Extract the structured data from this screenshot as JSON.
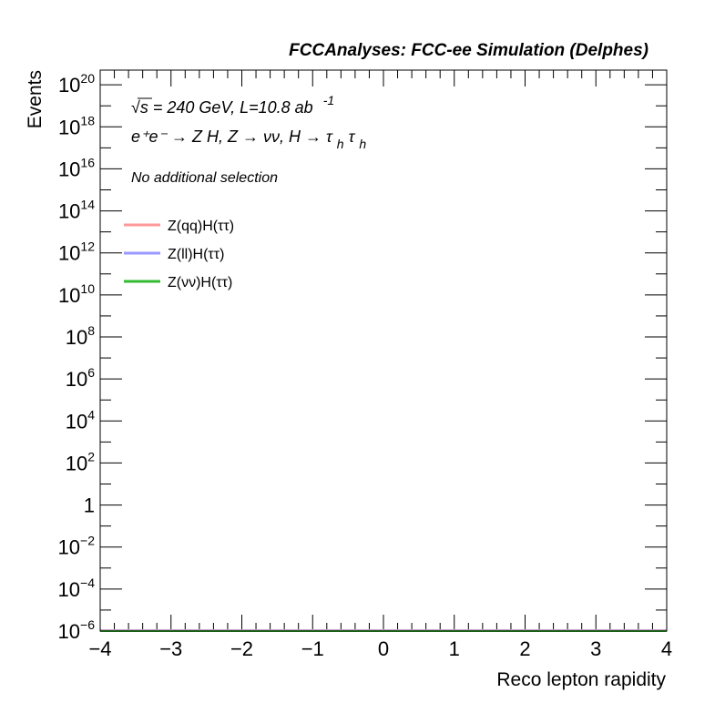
{
  "chart_data": {
    "type": "line",
    "title": "FCCAnalyses: FCC-ee Simulation (Delphes)",
    "xlabel": "Reco lepton rapidity",
    "ylabel": "Events",
    "xlim": [
      -4,
      4
    ],
    "ylim_log10": [
      -6,
      20.7
    ],
    "yscale": "log",
    "x_ticks": [
      "−4",
      "−3",
      "−2",
      "−1",
      "0",
      "1",
      "2",
      "3",
      "4"
    ],
    "y_ticks": [
      {
        "base": "10",
        "exp": "20"
      },
      {
        "base": "10",
        "exp": "18"
      },
      {
        "base": "10",
        "exp": "16"
      },
      {
        "base": "10",
        "exp": "14"
      },
      {
        "base": "10",
        "exp": "12"
      },
      {
        "base": "10",
        "exp": "10"
      },
      {
        "base": "10",
        "exp": "8"
      },
      {
        "base": "10",
        "exp": "6"
      },
      {
        "base": "10",
        "exp": "4"
      },
      {
        "base": "10",
        "exp": "2"
      },
      {
        "base": "1",
        "exp": ""
      },
      {
        "base": "10",
        "exp": "−2"
      },
      {
        "base": "10",
        "exp": "−4"
      },
      {
        "base": "10",
        "exp": "−6"
      }
    ],
    "annotations": {
      "energy": "√s = 240 GeV, L=10.8 ab",
      "energy_exp": "-1",
      "process": "e⁺e⁻ → Z H, Z → νν, H → τ",
      "process_sub1": "h",
      "process_tau2": "τ",
      "process_sub2": "h",
      "selection": "No additional selection"
    },
    "legend_position": "top-left",
    "series": [
      {
        "name": "Z(qq)H(ττ)",
        "color": "#ff9999",
        "x": [
          -4,
          4
        ],
        "y": [
          0,
          0
        ]
      },
      {
        "name": "Z(ll)H(ττ)",
        "color": "#9999ff",
        "x": [
          -4,
          4
        ],
        "y": [
          0,
          0
        ]
      },
      {
        "name": "Z(νν)H(ττ)",
        "color": "#33bb33",
        "x": [
          -4,
          4
        ],
        "y": [
          0,
          0
        ]
      }
    ]
  }
}
